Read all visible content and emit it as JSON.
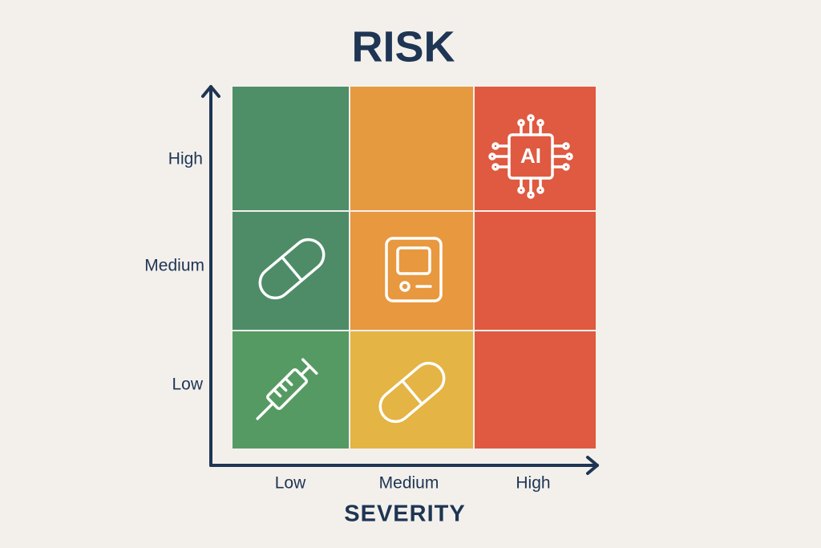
{
  "title": "RISK",
  "y_axis": {
    "labels": [
      "High",
      "Medium",
      "Low"
    ]
  },
  "x_axis": {
    "label": "SEVERITY",
    "labels": [
      "Low",
      "Medium",
      "High"
    ]
  },
  "chip_icon": {
    "label": "AI"
  }
}
